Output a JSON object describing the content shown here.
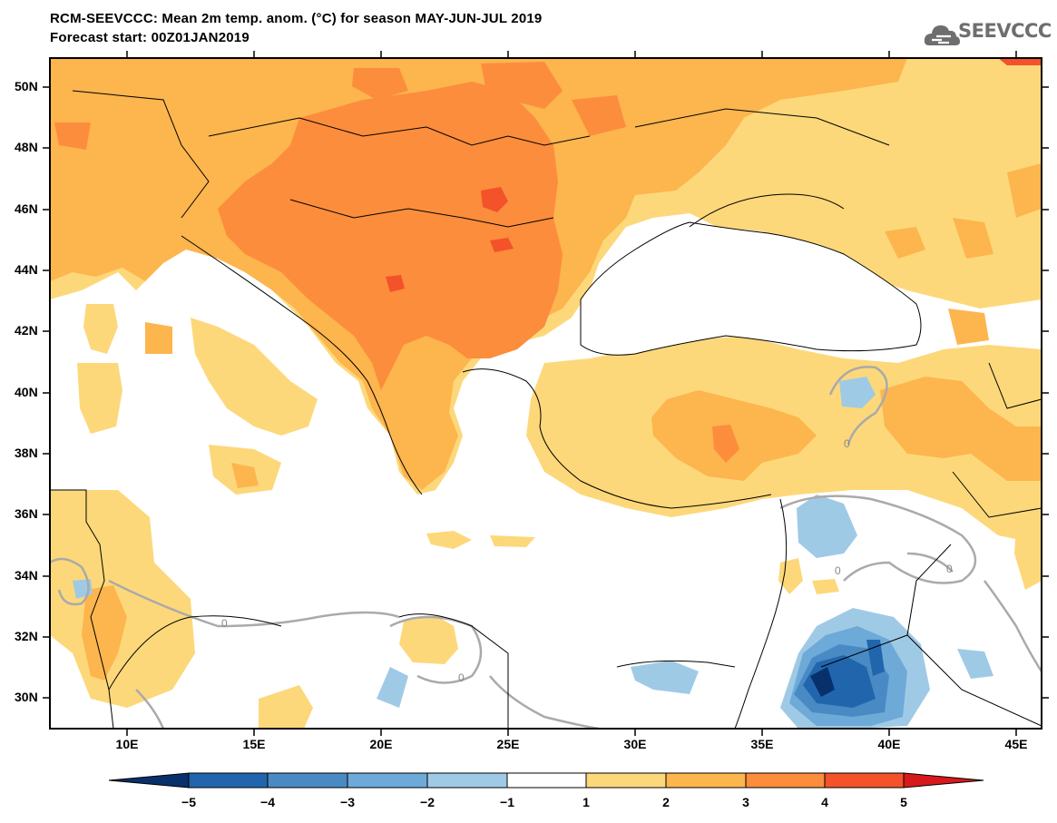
{
  "header": {
    "title": "RCM-SEEVCCC: Mean 2m temp. anom. (°C) for season MAY-JUN-JUL 2019",
    "subtitle": "Forecast start: 00Z01JAN2019",
    "logo_text": "SEEVCCC",
    "logo_icon": "cloud-icon"
  },
  "map": {
    "lat_labels": [
      "50N",
      "48N",
      "46N",
      "44N",
      "42N",
      "40N",
      "38N",
      "36N",
      "34N",
      "32N",
      "30N"
    ],
    "lon_labels": [
      "10E",
      "15E",
      "20E",
      "25E",
      "30E",
      "35E",
      "40E",
      "45E"
    ],
    "contour_label": "0",
    "colors": {
      "sea": "#ffffff",
      "border": "#000000",
      "contour": "#aaaaaa"
    }
  },
  "colorbar": {
    "labels": [
      "−5",
      "−4",
      "−3",
      "−2",
      "−1",
      "1",
      "2",
      "3",
      "4",
      "5"
    ],
    "colors": [
      "#08306b",
      "#2166ac",
      "#4a8ac4",
      "#6eaad8",
      "#9fcae6",
      "#ffffff",
      "#fdd87a",
      "#fdb54e",
      "#fc8d3c",
      "#f3522b",
      "#d7191c"
    ]
  }
}
